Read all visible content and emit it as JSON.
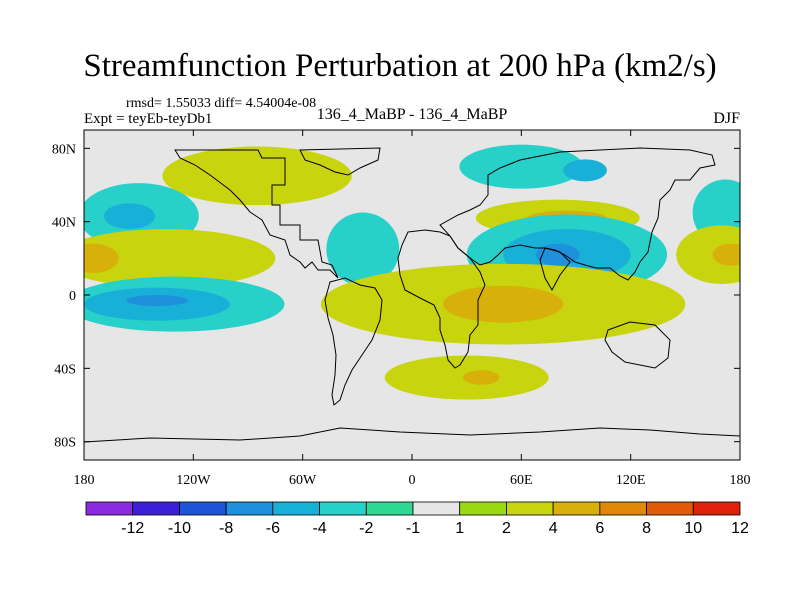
{
  "header": {
    "title": "Streamfunction Perturbation at 200 hPa (km2/s)",
    "stats": "rmsd= 1.55033 diff= 4.54004e-08",
    "experiment": "Expt = teyEb-teyDb1",
    "center_label": "136_4_MaBP - 136_4_MaBP",
    "season": "DJF"
  },
  "colors": {
    "frame": "#000000",
    "land_outline": "#000000",
    "neutral_fill": "#e6e6e6"
  },
  "chart_data": {
    "type": "heatmap",
    "title": "Streamfunction Perturbation at 200 hPa (km2/s)",
    "x_range": [
      -180,
      180
    ],
    "y_range": [
      -90,
      90
    ],
    "x_ticks": [
      {
        "value": -180,
        "label": "180"
      },
      {
        "value": -120,
        "label": "120W"
      },
      {
        "value": -60,
        "label": "60W"
      },
      {
        "value": 0,
        "label": "0"
      },
      {
        "value": 60,
        "label": "60E"
      },
      {
        "value": 120,
        "label": "120E"
      },
      {
        "value": 180,
        "label": "180"
      }
    ],
    "y_ticks": [
      {
        "value": 80,
        "label": "80N"
      },
      {
        "value": 40,
        "label": "40N"
      },
      {
        "value": 0,
        "label": "0"
      },
      {
        "value": -40,
        "label": "40S"
      },
      {
        "value": -80,
        "label": "80S"
      }
    ],
    "colorbar": {
      "colors": [
        "#8a2be2",
        "#3b1fd9",
        "#1e55d8",
        "#1e90dc",
        "#19b0d8",
        "#27d0c8",
        "#2ed890",
        "#e6e6e6",
        "#9ad80f",
        "#c7d40e",
        "#d8b00a",
        "#e0880a",
        "#e05a0a",
        "#e0200a"
      ],
      "labels": [
        "-12",
        "-10",
        "-8",
        "-6",
        "-4",
        "-2",
        "-1",
        "1",
        "2",
        "4",
        "6",
        "8",
        "10",
        "12"
      ]
    },
    "anomalies": [
      {
        "lon": 60,
        "lat": 70,
        "rlon": 34,
        "rlat": 12,
        "value": -2
      },
      {
        "lon": 95,
        "lat": 68,
        "rlon": 12,
        "rlat": 6,
        "value": -4
      },
      {
        "lon": -85,
        "lat": 65,
        "rlon": 52,
        "rlat": 16,
        "value": 2
      },
      {
        "lon": 80,
        "lat": 42,
        "rlon": 45,
        "rlat": 10,
        "value": 2
      },
      {
        "lon": 85,
        "lat": 42,
        "rlon": 22,
        "rlat": 4,
        "value": 4
      },
      {
        "lon": -150,
        "lat": 43,
        "rlon": 33,
        "rlat": 18,
        "value": -2
      },
      {
        "lon": -155,
        "lat": 43,
        "rlon": 14,
        "rlat": 7,
        "value": -4
      },
      {
        "lon": 172,
        "lat": 45,
        "rlon": 18,
        "rlat": 18,
        "value": -2
      },
      {
        "lon": 85,
        "lat": 22,
        "rlon": 55,
        "rlat": 22,
        "value": -2
      },
      {
        "lon": 85,
        "lat": 22,
        "rlon": 35,
        "rlat": 14,
        "value": -4
      },
      {
        "lon": 80,
        "lat": 22,
        "rlon": 12,
        "rlat": 6,
        "value": -6
      },
      {
        "lon": -27,
        "lat": 25,
        "rlon": 20,
        "rlat": 20,
        "value": -2
      },
      {
        "lon": -135,
        "lat": 20,
        "rlon": 60,
        "rlat": 16,
        "value": 2
      },
      {
        "lon": -175,
        "lat": 20,
        "rlon": 14,
        "rlat": 8,
        "value": 4
      },
      {
        "lon": 170,
        "lat": 22,
        "rlon": 25,
        "rlat": 16,
        "value": 2
      },
      {
        "lon": 175,
        "lat": 22,
        "rlon": 10,
        "rlat": 6,
        "value": 4
      },
      {
        "lon": -130,
        "lat": -5,
        "rlon": 60,
        "rlat": 15,
        "value": -2
      },
      {
        "lon": -140,
        "lat": -5,
        "rlon": 40,
        "rlat": 9,
        "value": -4
      },
      {
        "lon": -140,
        "lat": -3,
        "rlon": 17,
        "rlat": 3,
        "value": -6
      },
      {
        "lon": 50,
        "lat": -5,
        "rlon": 100,
        "rlat": 22,
        "value": 2
      },
      {
        "lon": 50,
        "lat": -5,
        "rlon": 33,
        "rlat": 10,
        "value": 4
      },
      {
        "lon": 30,
        "lat": -45,
        "rlon": 45,
        "rlat": 12,
        "value": 2
      },
      {
        "lon": 38,
        "lat": -45,
        "rlon": 10,
        "rlat": 4,
        "value": 4
      }
    ]
  }
}
